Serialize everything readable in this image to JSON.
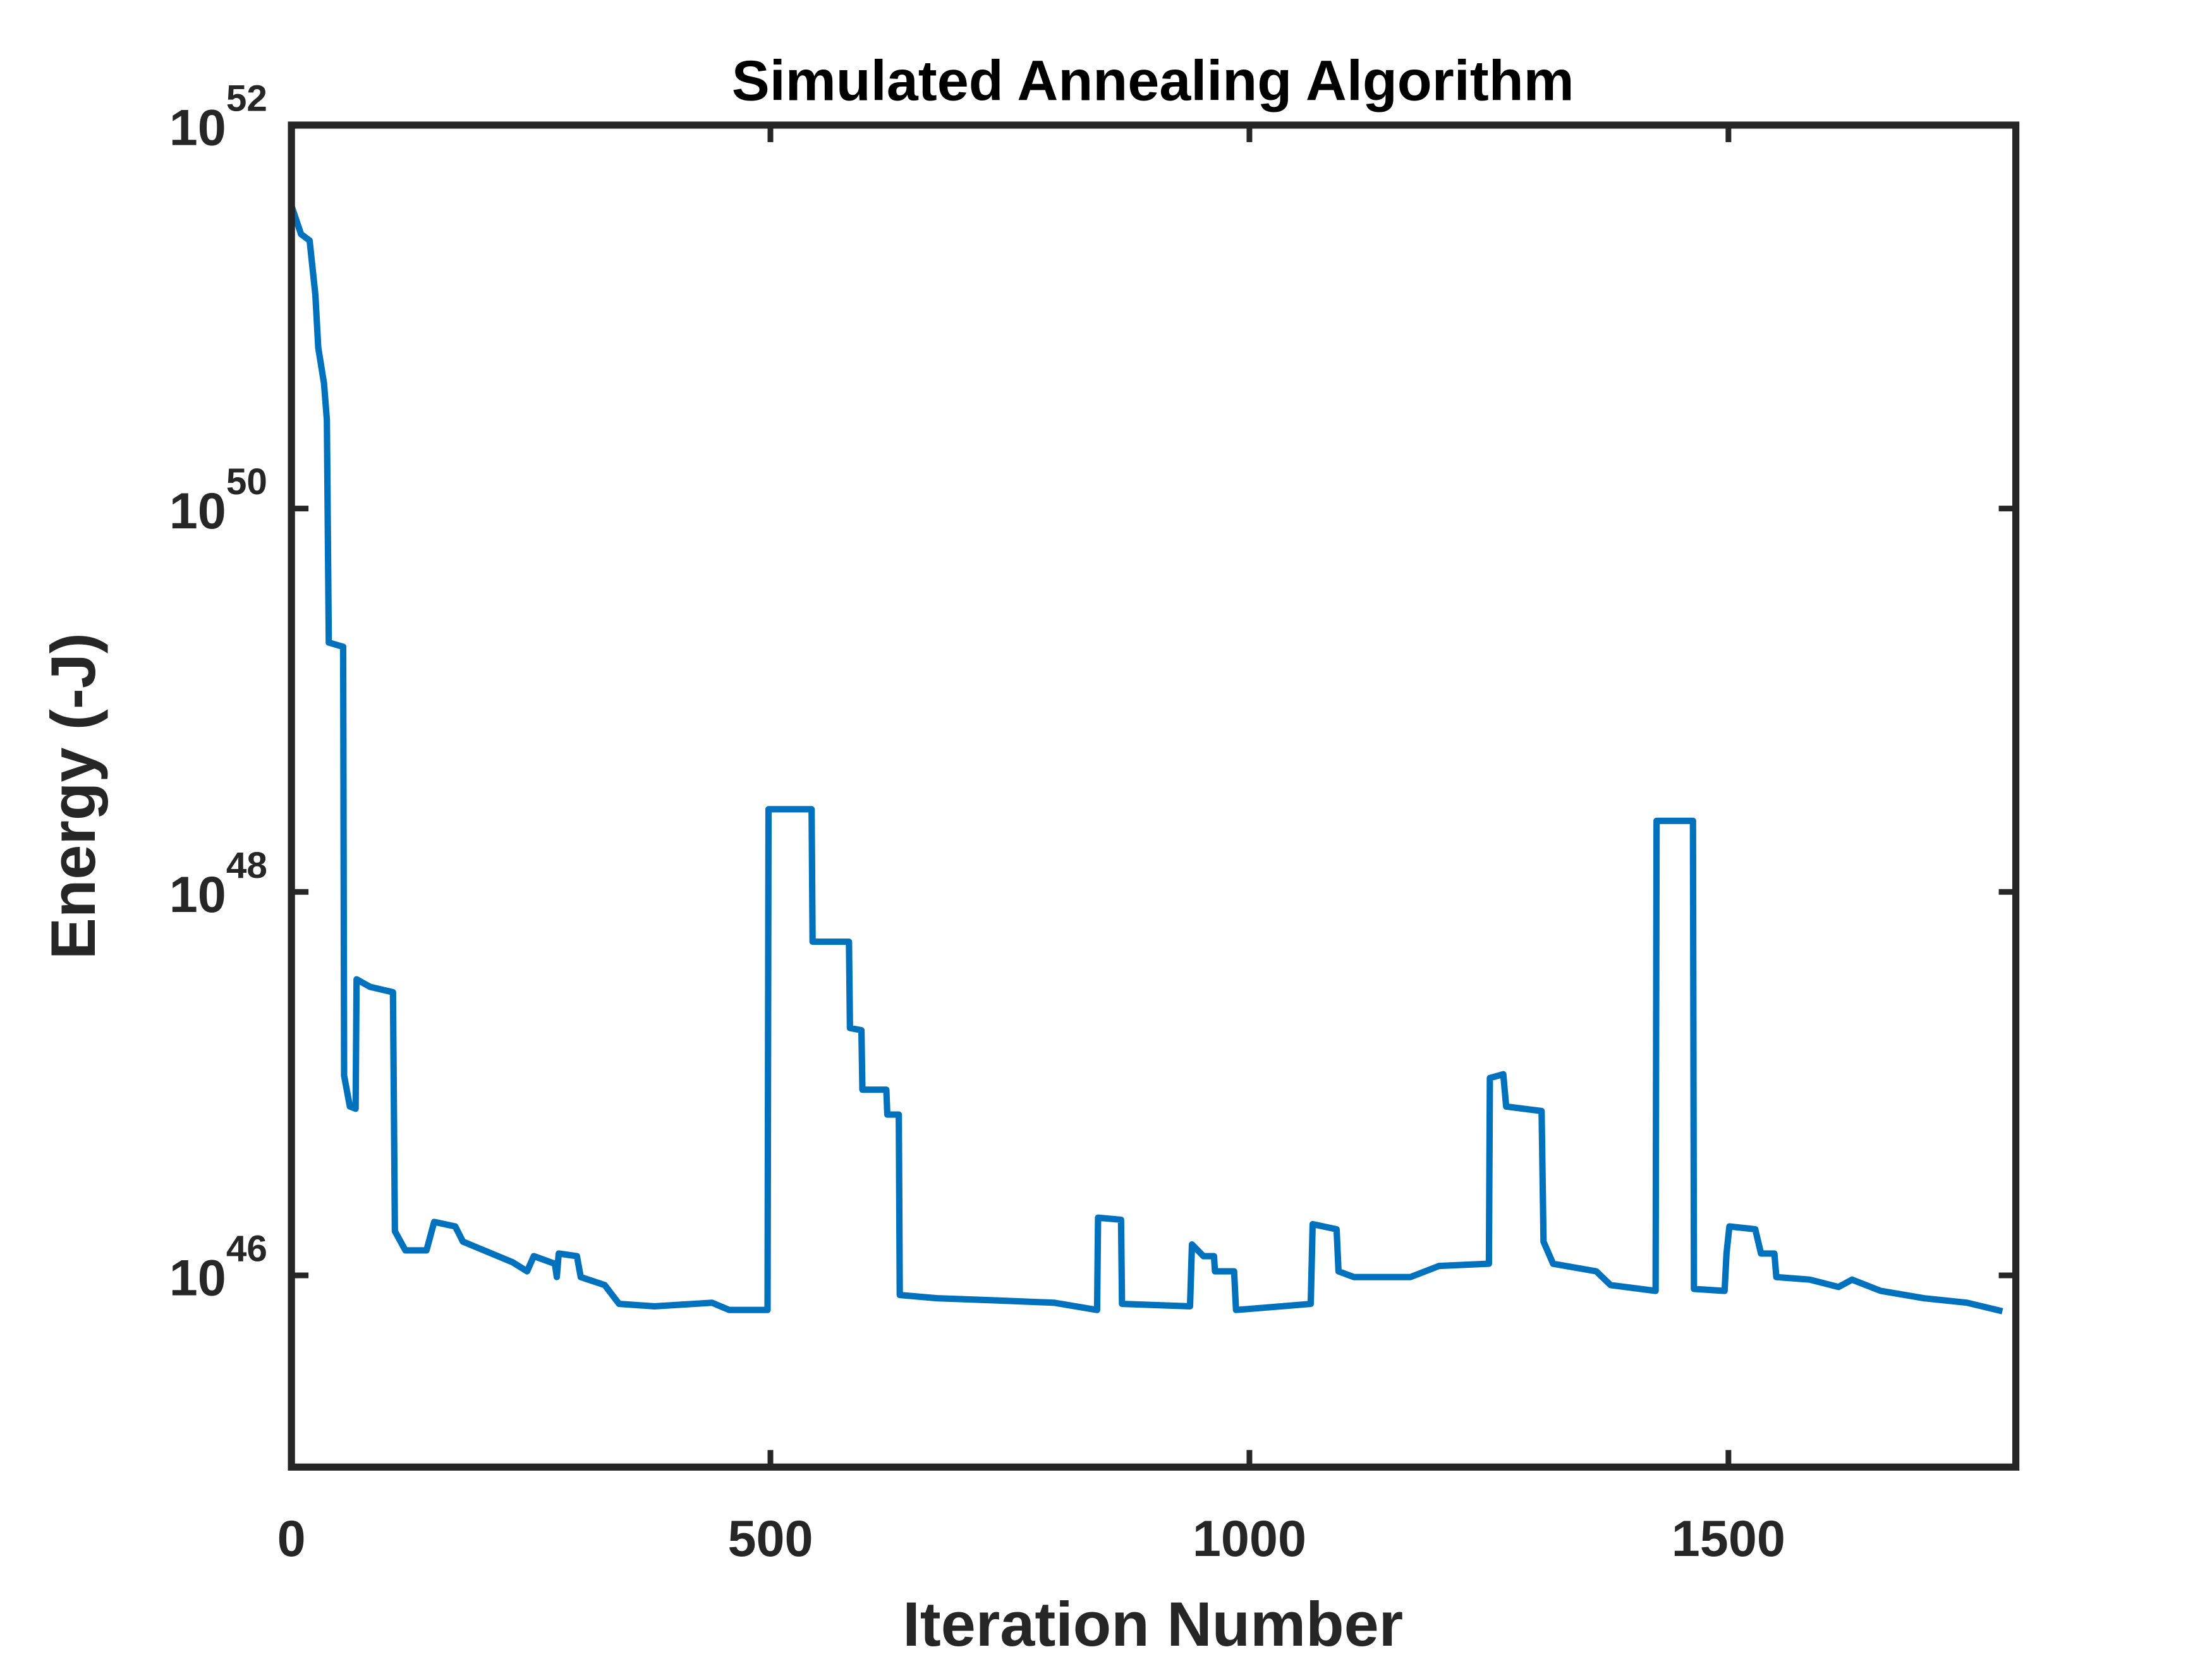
{
  "chart_data": {
    "type": "line",
    "title": "Simulated Annealing Algorithm",
    "xlabel": "Iteration Number",
    "ylabel": "Energy (-J)",
    "yscale": "log",
    "color": "#0072bd",
    "xlim": [
      0,
      1800
    ],
    "xticks": [
      0,
      500,
      1000,
      1500
    ],
    "ylim": [
      1e+45,
      1e+52
    ],
    "yticks": [
      {
        "value": 1e+46,
        "label": "10^46"
      },
      {
        "value": 1e+48,
        "label": "10^48"
      },
      {
        "value": 1e+50,
        "label": "10^50"
      },
      {
        "value": 1e+52,
        "label": "10^52"
      }
    ],
    "x": [
      0,
      10,
      19,
      25,
      28,
      34,
      37,
      39,
      54,
      55,
      61,
      67,
      68,
      82,
      106,
      108,
      119,
      141,
      149,
      171,
      179,
      201,
      231,
      246,
      253,
      275,
      277,
      279,
      298,
      302,
      327,
      342,
      379,
      439,
      457,
      497,
      498,
      543,
      544,
      582,
      583,
      595,
      596,
      621,
      622,
      634,
      635,
      674,
      737,
      796,
      841,
      842,
      866,
      867,
      938,
      940,
      952,
      963,
      964,
      984,
      986,
      1034,
      1064,
      1066,
      1091,
      1093,
      1109,
      1168,
      1198,
      1250,
      1251,
      1265,
      1268,
      1305,
      1307,
      1317,
      1362,
      1377,
      1424,
      1425,
      1463,
      1464,
      1496,
      1498,
      1501,
      1528,
      1534,
      1548,
      1550,
      1585,
      1615,
      1629,
      1659,
      1704,
      1749,
      1786
    ],
    "values": [
      3.8e+51,
      2.7e+51,
      2.5e+51,
      1.3e+51,
      6.9e+50,
      4.5e+50,
      2.9e+50,
      2e+49,
      1.9e+49,
      1.1e+47,
      7.6e+46,
      7.4e+46,
      3.5e+47,
      3.2e+47,
      3e+47,
      1.7e+46,
      1.35e+46,
      1.35e+46,
      1.9e+46,
      1.8e+46,
      1.5e+46,
      1.35e+46,
      1.17e+46,
      1.05e+46,
      1.26e+46,
      1.15e+46,
      9.8e+45,
      1.3e+46,
      1.26e+46,
      9.8e+45,
      8.9e+45,
      7.1e+45,
      6.9e+45,
      7.2e+45,
      6.6e+45,
      6.6e+45,
      2.7e+48,
      2.7e+48,
      5.5e+47,
      5.5e+47,
      1.95e+47,
      1.9e+47,
      9.3e+46,
      9.3e+46,
      6.9e+46,
      6.9e+46,
      7.9e+45,
      7.6e+45,
      7.4e+45,
      7.2e+45,
      6.6e+45,
      2e+46,
      1.95e+46,
      7.1e+45,
      6.9e+45,
      1.45e+46,
      1.26e+46,
      1.26e+46,
      1.05e+46,
      1.05e+46,
      6.6e+45,
      6.9e+45,
      7.1e+45,
      1.85e+46,
      1.74e+46,
      1.05e+46,
      9.8e+45,
      9.8e+45,
      1.12e+46,
      1.15e+46,
      1.07e+47,
      1.12e+47,
      7.6e+46,
      7.2e+46,
      1.5e+46,
      1.15e+46,
      1.05e+46,
      8.9e+45,
      8.3e+45,
      2.35e+48,
      2.35e+48,
      8.5e+45,
      8.3e+45,
      1.3e+46,
      1.8e+46,
      1.74e+46,
      1.3e+46,
      1.3e+46,
      9.8e+45,
      9.5e+45,
      8.7e+45,
      9.5e+45,
      8.3e+45,
      7.6e+45,
      7.2e+45,
      6.5e+45
    ]
  }
}
